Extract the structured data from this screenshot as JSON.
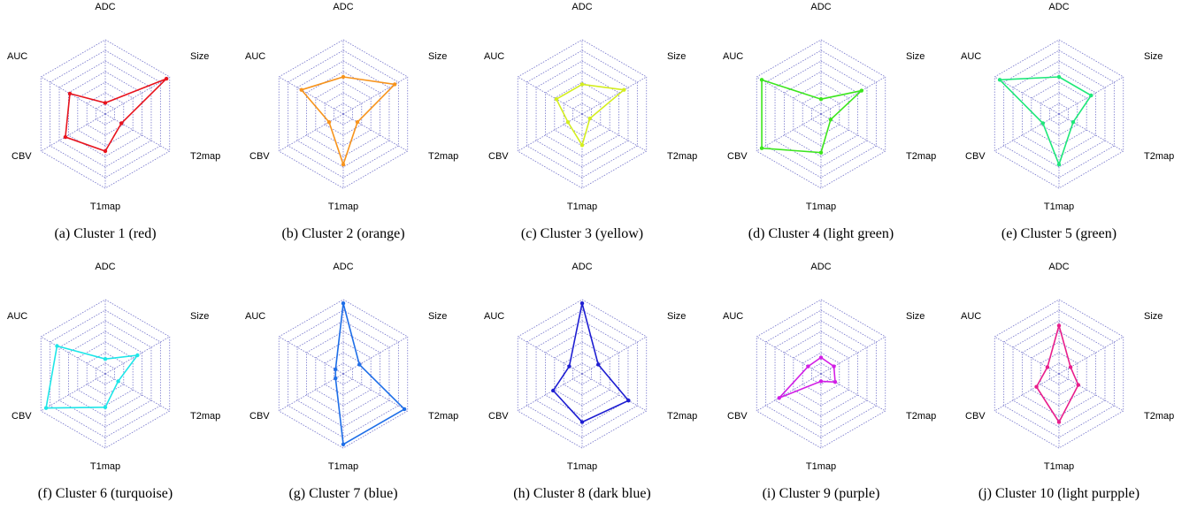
{
  "chart_data": [
    {
      "type": "radar",
      "axes": [
        "ADC",
        "Size",
        "T2map",
        "T1map",
        "CBV",
        "AUC"
      ],
      "values": [
        0.15,
        0.95,
        0.25,
        0.5,
        0.62,
        0.55
      ],
      "color": "#e8141e",
      "caption": "(a)  Cluster 1 (red)"
    },
    {
      "type": "radar",
      "axes": [
        "ADC",
        "Size",
        "T2map",
        "T1map",
        "CBV",
        "AUC"
      ],
      "values": [
        0.5,
        0.8,
        0.22,
        0.68,
        0.22,
        0.65
      ],
      "color": "#f7941d",
      "caption": "(b)  Cluster 2 (orange)"
    },
    {
      "type": "radar",
      "axes": [
        "ADC",
        "Size",
        "T2map",
        "T1map",
        "CBV",
        "AUC"
      ],
      "values": [
        0.4,
        0.65,
        0.12,
        0.42,
        0.22,
        0.4
      ],
      "color": "#d4ee20",
      "caption": "(c)  Cluster 3 (yellow)"
    },
    {
      "type": "radar",
      "axes": [
        "ADC",
        "Size",
        "T2map",
        "T1map",
        "CBV",
        "AUC"
      ],
      "values": [
        0.2,
        0.63,
        0.15,
        0.52,
        0.92,
        0.92
      ],
      "color": "#3ce61e",
      "caption": "(d)  Cluster 4 (light green)"
    },
    {
      "type": "radar",
      "axes": [
        "ADC",
        "Size",
        "T2map",
        "T1map",
        "CBV",
        "AUC"
      ],
      "values": [
        0.5,
        0.5,
        0.22,
        0.68,
        0.25,
        0.92
      ],
      "color": "#1ee87a",
      "caption": "(e)  Cluster 5 (green)"
    },
    {
      "type": "radar",
      "axes": [
        "ADC",
        "Size",
        "T2map",
        "T1map",
        "CBV",
        "AUC"
      ],
      "values": [
        0.2,
        0.5,
        0.2,
        0.45,
        0.92,
        0.75
      ],
      "color": "#1ee6e8",
      "caption": "(f)  Cluster 6 (turquoise)"
    },
    {
      "type": "radar",
      "axes": [
        "ADC",
        "Size",
        "T2map",
        "T1map",
        "CBV",
        "AUC"
      ],
      "values": [
        0.95,
        0.25,
        0.95,
        0.95,
        0.12,
        0.12
      ],
      "color": "#1e6ee8",
      "caption": "(g)  Cluster 7 (blue)"
    },
    {
      "type": "radar",
      "axes": [
        "ADC",
        "Size",
        "T2map",
        "T1map",
        "CBV",
        "AUC"
      ],
      "values": [
        0.95,
        0.25,
        0.72,
        0.65,
        0.45,
        0.2
      ],
      "color": "#1e1ed2",
      "caption": "(h)  Cluster 8 (dark blue)"
    },
    {
      "type": "radar",
      "axes": [
        "ADC",
        "Size",
        "T2map",
        "T1map",
        "CBV",
        "AUC"
      ],
      "values": [
        0.22,
        0.2,
        0.22,
        0.1,
        0.65,
        0.2
      ],
      "color": "#d21ee6",
      "caption": "(i)  Cluster 9 (purple)"
    },
    {
      "type": "radar",
      "axes": [
        "ADC",
        "Size",
        "T2map",
        "T1map",
        "CBV",
        "AUC"
      ],
      "values": [
        0.65,
        0.18,
        0.3,
        0.65,
        0.35,
        0.18
      ],
      "color": "#e81e8c",
      "caption": "(j)  Cluster 10 (light purpple)"
    }
  ]
}
